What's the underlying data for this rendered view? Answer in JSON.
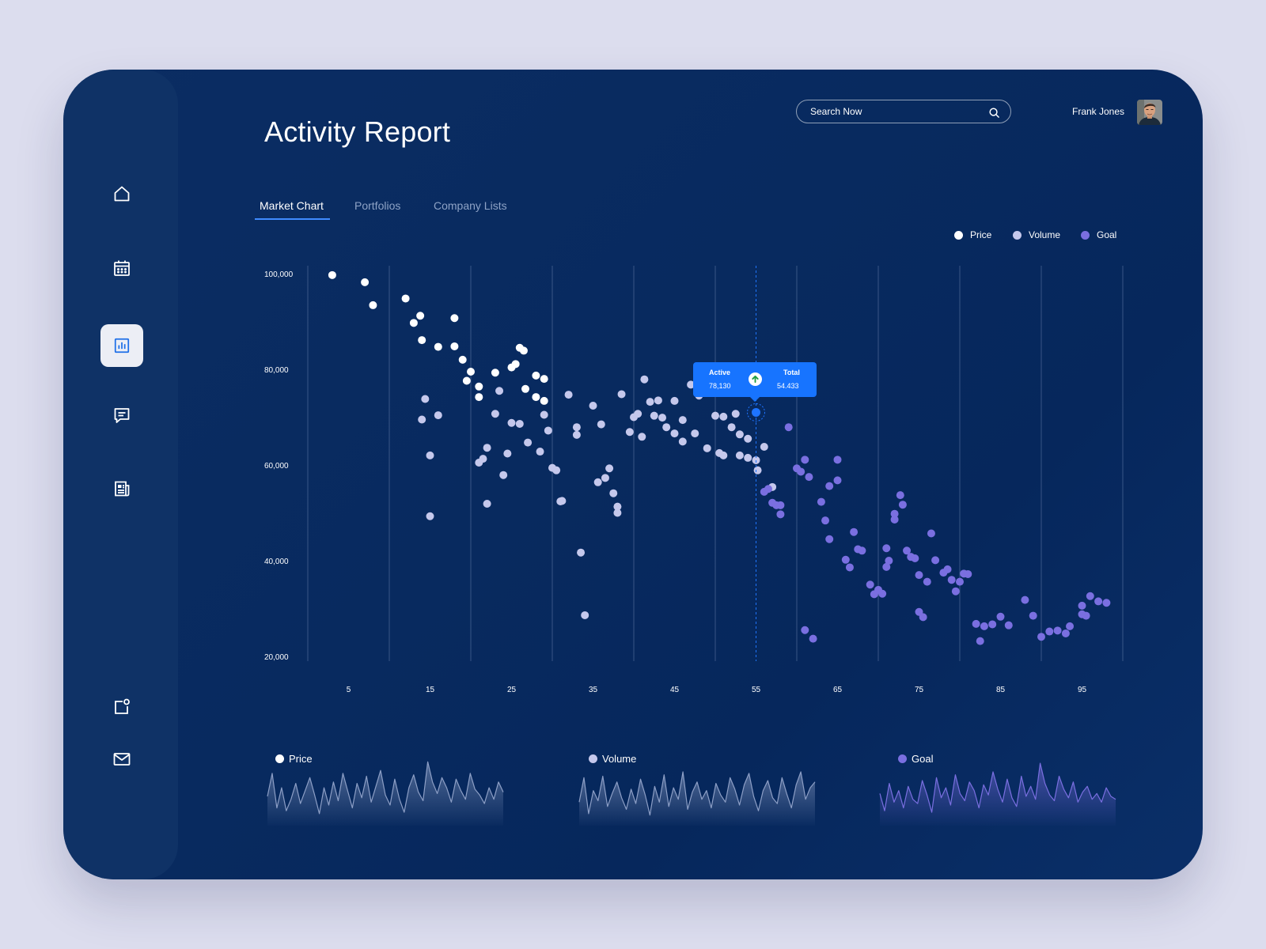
{
  "page": {
    "title": "Activity Report"
  },
  "header": {
    "search_placeholder": "Search Now",
    "user_name": "Frank Jones"
  },
  "sidebar": {
    "items": [
      {
        "icon": "home-icon",
        "active": false
      },
      {
        "icon": "calendar-icon",
        "active": false
      },
      {
        "icon": "bar-chart-icon",
        "active": true
      },
      {
        "icon": "chat-icon",
        "active": false
      },
      {
        "icon": "document-icon",
        "active": false
      },
      {
        "icon": "notification-icon",
        "active": false
      },
      {
        "icon": "mail-icon",
        "active": false
      }
    ]
  },
  "tabs": [
    {
      "label": "Market Chart",
      "active": true
    },
    {
      "label": "Portfolios",
      "active": false
    },
    {
      "label": "Company Lists",
      "active": false
    }
  ],
  "colors": {
    "price": "#ffffff",
    "volume": "#c5c8ec",
    "goal": "#7a6fe0",
    "accent": "#1774ff"
  },
  "tooltip": {
    "active_label": "Active",
    "active_value": "78,130",
    "total_label": "Total",
    "total_value": "54.433"
  },
  "chart_data": {
    "type": "scatter",
    "title": "",
    "xlabel": "",
    "ylabel": "",
    "xlim": [
      0,
      100
    ],
    "ylim": [
      20000,
      100000
    ],
    "x_ticks": [
      5,
      15,
      25,
      35,
      45,
      55,
      65,
      75,
      85,
      95
    ],
    "y_ticks": [
      100000,
      80000,
      60000,
      40000,
      20000
    ],
    "y_tick_labels": [
      "100,000",
      "80,000",
      "60,000",
      "40,000",
      "20,000"
    ],
    "grid": "vertical",
    "legend": "top-right",
    "highlight": {
      "x": 55,
      "y": 71000
    },
    "series": [
      {
        "name": "Price",
        "points": [
          [
            3,
            99700
          ],
          [
            7,
            98200
          ],
          [
            8,
            93400
          ],
          [
            12,
            94800
          ],
          [
            13,
            89700
          ],
          [
            13.8,
            91200
          ],
          [
            14,
            86100
          ],
          [
            16,
            84700
          ],
          [
            18,
            90700
          ],
          [
            18,
            84800
          ],
          [
            19,
            82000
          ],
          [
            19.5,
            77600
          ],
          [
            20,
            79500
          ],
          [
            21,
            76400
          ],
          [
            21,
            74200
          ],
          [
            23,
            79300
          ],
          [
            25,
            80400
          ],
          [
            25.5,
            81100
          ],
          [
            26,
            84500
          ],
          [
            26.5,
            83900
          ],
          [
            26.7,
            75900
          ],
          [
            28,
            78700
          ],
          [
            28,
            74200
          ],
          [
            29,
            78000
          ],
          [
            29,
            73400
          ]
        ]
      },
      {
        "name": "Volume",
        "points": [
          [
            14.4,
            73800
          ],
          [
            14,
            69500
          ],
          [
            15,
            62000
          ],
          [
            15,
            49300
          ],
          [
            16,
            70400
          ],
          [
            21,
            60500
          ],
          [
            21.5,
            61300
          ],
          [
            22,
            63600
          ],
          [
            22,
            51900
          ],
          [
            23,
            70700
          ],
          [
            23.5,
            75500
          ],
          [
            24,
            57900
          ],
          [
            24.5,
            62400
          ],
          [
            25,
            68800
          ],
          [
            26,
            68600
          ],
          [
            27,
            64700
          ],
          [
            28.5,
            62800
          ],
          [
            29,
            70500
          ],
          [
            29.5,
            67200
          ],
          [
            30,
            59400
          ],
          [
            30.5,
            58900
          ],
          [
            31,
            52400
          ],
          [
            31.2,
            52500
          ],
          [
            32,
            74700
          ],
          [
            33,
            66300
          ],
          [
            33,
            67900
          ],
          [
            33.5,
            41700
          ],
          [
            34,
            28600
          ],
          [
            35,
            72400
          ],
          [
            35.6,
            56400
          ],
          [
            36,
            68500
          ],
          [
            36.5,
            57300
          ],
          [
            37,
            59300
          ],
          [
            37.5,
            54100
          ],
          [
            38,
            50000
          ],
          [
            38,
            51300
          ],
          [
            38.5,
            74800
          ],
          [
            39.5,
            66900
          ],
          [
            40,
            70000
          ],
          [
            40.5,
            70700
          ],
          [
            41,
            65900
          ],
          [
            41.3,
            77900
          ],
          [
            42,
            73200
          ],
          [
            42.5,
            70300
          ],
          [
            43,
            73500
          ],
          [
            43.5,
            69900
          ],
          [
            44,
            67900
          ],
          [
            45,
            73400
          ],
          [
            45,
            66600
          ],
          [
            46,
            69400
          ],
          [
            46,
            64900
          ],
          [
            47,
            76800
          ],
          [
            48,
            74500
          ],
          [
            47.5,
            66600
          ],
          [
            48,
            78500
          ],
          [
            49,
            63500
          ],
          [
            50,
            70300
          ],
          [
            50.5,
            62500
          ],
          [
            51,
            62000
          ],
          [
            51,
            70100
          ],
          [
            52,
            67900
          ],
          [
            52.5,
            70700
          ],
          [
            53,
            66400
          ],
          [
            53,
            62000
          ],
          [
            54,
            65500
          ],
          [
            54,
            61500
          ],
          [
            55,
            61000
          ],
          [
            55.2,
            58900
          ],
          [
            56,
            63800
          ],
          [
            57,
            55400
          ]
        ]
      },
      {
        "name": "Goal",
        "points": [
          [
            56,
            54400
          ],
          [
            56.5,
            55000
          ],
          [
            57,
            52100
          ],
          [
            57.5,
            51600
          ],
          [
            58,
            49700
          ],
          [
            58,
            51600
          ],
          [
            59,
            67900
          ],
          [
            60,
            59300
          ],
          [
            60.5,
            58600
          ],
          [
            61,
            61100
          ],
          [
            61.5,
            57500
          ],
          [
            61,
            25500
          ],
          [
            62,
            23700
          ],
          [
            63,
            52300
          ],
          [
            63.5,
            48400
          ],
          [
            64,
            55600
          ],
          [
            65,
            56800
          ],
          [
            64,
            44500
          ],
          [
            65,
            61100
          ],
          [
            66,
            40200
          ],
          [
            66.5,
            38600
          ],
          [
            67,
            46000
          ],
          [
            67.5,
            42400
          ],
          [
            68,
            42100
          ],
          [
            69,
            35000
          ],
          [
            69.5,
            33000
          ],
          [
            70,
            33900
          ],
          [
            70.5,
            33100
          ],
          [
            71,
            38700
          ],
          [
            71,
            42600
          ],
          [
            71.3,
            40000
          ],
          [
            72,
            49800
          ],
          [
            72,
            48600
          ],
          [
            72.7,
            53700
          ],
          [
            73,
            51700
          ],
          [
            73.5,
            42100
          ],
          [
            74,
            40800
          ],
          [
            74.5,
            40500
          ],
          [
            75,
            37000
          ],
          [
            75,
            29300
          ],
          [
            75.5,
            28200
          ],
          [
            76,
            35600
          ],
          [
            76.5,
            45700
          ],
          [
            77,
            40100
          ],
          [
            78,
            37500
          ],
          [
            78.5,
            38200
          ],
          [
            79,
            36000
          ],
          [
            79.5,
            33600
          ],
          [
            80,
            35600
          ],
          [
            80.5,
            37300
          ],
          [
            81,
            37200
          ],
          [
            82,
            26800
          ],
          [
            82.5,
            23200
          ],
          [
            83,
            26300
          ],
          [
            84,
            26700
          ],
          [
            85,
            28300
          ],
          [
            86,
            26500
          ],
          [
            88,
            31800
          ],
          [
            89,
            28500
          ],
          [
            90,
            24100
          ],
          [
            91,
            25200
          ],
          [
            92,
            25400
          ],
          [
            93,
            24800
          ],
          [
            93.5,
            26300
          ],
          [
            95,
            30600
          ],
          [
            95,
            28800
          ],
          [
            95.5,
            28500
          ],
          [
            96,
            32600
          ],
          [
            97,
            31500
          ],
          [
            98,
            31200
          ]
        ]
      }
    ]
  },
  "mini_charts": [
    {
      "name": "Price",
      "values": [
        32,
        48,
        24,
        38,
        22,
        30,
        41,
        27,
        36,
        45,
        33,
        20,
        38,
        26,
        42,
        29,
        48,
        36,
        24,
        41,
        31,
        46,
        28,
        39,
        50,
        33,
        26,
        44,
        30,
        21,
        38,
        47,
        35,
        29,
        56,
        42,
        34,
        45,
        38,
        28,
        44,
        36,
        30,
        48,
        37,
        33,
        27,
        38,
        30,
        42,
        35
      ]
    },
    {
      "name": "Volume",
      "values": [
        28,
        45,
        20,
        36,
        29,
        46,
        25,
        34,
        42,
        31,
        23,
        37,
        27,
        44,
        33,
        19,
        39,
        28,
        47,
        25,
        38,
        30,
        49,
        23,
        35,
        42,
        30,
        36,
        24,
        41,
        33,
        28,
        45,
        37,
        26,
        40,
        48,
        32,
        22,
        36,
        43,
        31,
        27,
        45,
        34,
        24,
        40,
        49,
        30,
        38,
        42
      ]
    },
    {
      "name": "Goal",
      "values": [
        34,
        22,
        41,
        28,
        36,
        24,
        39,
        30,
        27,
        43,
        33,
        21,
        45,
        31,
        38,
        26,
        47,
        34,
        29,
        42,
        36,
        24,
        40,
        33,
        49,
        37,
        28,
        44,
        31,
        25,
        46,
        32,
        39,
        30,
        55,
        41,
        33,
        29,
        46,
        37,
        31,
        42,
        28,
        35,
        39,
        30,
        34,
        28,
        38,
        32,
        30
      ]
    }
  ]
}
